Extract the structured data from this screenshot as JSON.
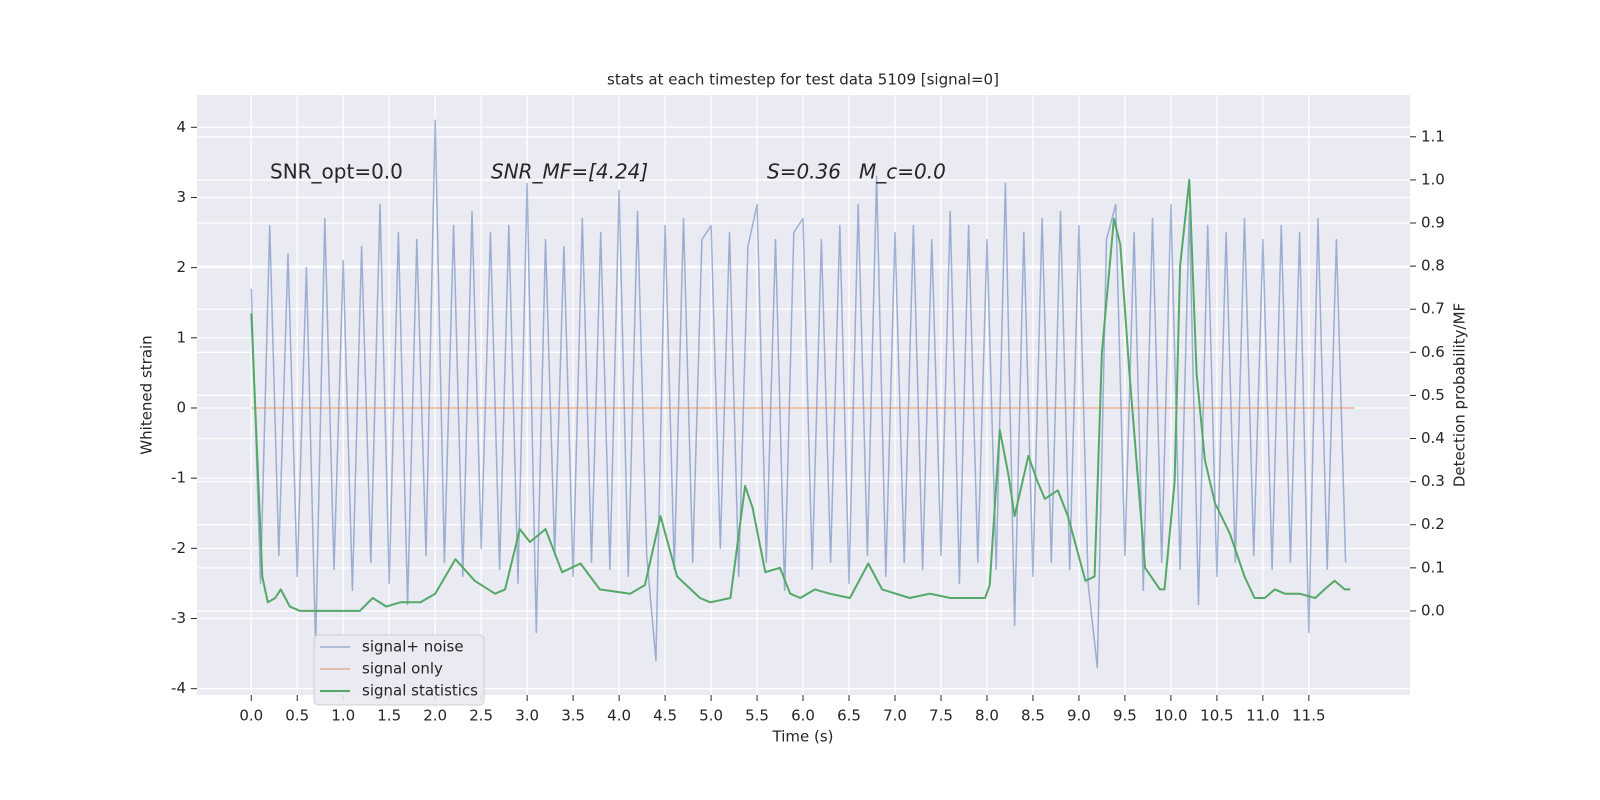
{
  "chart_data": {
    "type": "line",
    "title": "stats at each timestep for test data 5109 [signal=0]",
    "xlabel": "Time (s)",
    "ylabel": "Whitened strain",
    "y2label": "Detection probability/MF",
    "annotations": [
      "SNR_opt=0.0",
      "SNR_MF=[4.24]",
      "S=0.36",
      "M_c=0.0"
    ],
    "xlim": [
      -0.59,
      12.6
    ],
    "ylim": [
      -4.09,
      4.46
    ],
    "y2lim": [
      -0.195,
      1.197
    ],
    "xticks": [
      {
        "value": 0,
        "label": "0.0"
      },
      0.5,
      {
        "value": 1,
        "label": "1.0"
      },
      1.5,
      {
        "value": 2,
        "label": "2.0"
      },
      2.5,
      {
        "value": 3,
        "label": "3.0"
      },
      3.5,
      {
        "value": 4,
        "label": "4.0"
      },
      4.5,
      {
        "value": 5,
        "label": "5.0"
      },
      5.5,
      {
        "value": 6,
        "label": "6.0"
      },
      6.5,
      {
        "value": 7,
        "label": "7.0"
      },
      7.5,
      {
        "value": 8,
        "label": "8.0"
      },
      8.5,
      {
        "value": 9,
        "label": "9.0"
      },
      9.5,
      {
        "value": 10,
        "label": "10.0"
      },
      10.5,
      {
        "value": 11,
        "label": "11.0"
      },
      11.5
    ],
    "yticks": [
      -4,
      -3,
      -2,
      -1,
      0,
      1,
      2,
      3,
      4
    ],
    "y2ticks": [
      {
        "value": 0,
        "label": "0.0"
      },
      0.1,
      0.2,
      0.3,
      0.4,
      0.5,
      0.6,
      0.7,
      0.8,
      0.9,
      {
        "value": 1,
        "label": "1.0"
      },
      1.1
    ],
    "grid": true,
    "legend": "lower left",
    "series": [
      {
        "name": "signal+ noise",
        "color": "#4c72b0",
        "x": [
          0.0,
          0.1,
          0.2,
          0.3,
          0.4,
          0.5,
          0.6,
          0.7,
          0.8,
          0.9,
          1.0,
          1.1,
          1.2,
          1.3,
          1.4,
          1.5,
          1.6,
          1.7,
          1.8,
          1.9,
          2.0,
          2.1,
          2.2,
          2.3,
          2.4,
          2.5,
          2.6,
          2.7,
          2.8,
          2.9,
          3.0,
          3.1,
          3.2,
          3.3,
          3.4,
          3.5,
          3.6,
          3.7,
          3.8,
          3.9,
          4.0,
          4.1,
          4.2,
          4.3,
          4.4,
          4.5,
          4.6,
          4.7,
          4.8,
          4.9,
          5.0,
          5.1,
          5.2,
          5.3,
          5.4,
          5.5,
          5.6,
          5.7,
          5.8,
          5.9,
          6.0,
          6.1,
          6.2,
          6.3,
          6.4,
          6.5,
          6.6,
          6.7,
          6.8,
          6.9,
          7.0,
          7.1,
          7.2,
          7.3,
          7.4,
          7.5,
          7.6,
          7.7,
          7.8,
          7.9,
          8.0,
          8.1,
          8.2,
          8.3,
          8.4,
          8.5,
          8.6,
          8.7,
          8.8,
          8.9,
          9.0,
          9.1,
          9.2,
          9.3,
          9.4,
          9.5,
          9.6,
          9.7,
          9.8,
          9.9,
          10.0,
          10.1,
          10.2,
          10.3,
          10.4,
          10.5,
          10.6,
          10.7,
          10.8,
          10.9,
          11.0,
          11.1,
          11.2,
          11.3,
          11.4,
          11.5,
          11.6,
          11.7,
          11.8,
          11.9
        ],
        "values": [
          1.7,
          -2.5,
          2.6,
          -2.1,
          2.2,
          -2.4,
          2.0,
          -3.4,
          2.7,
          -2.3,
          2.1,
          -2.6,
          2.3,
          -2.2,
          2.9,
          -2.5,
          2.5,
          -2.8,
          2.4,
          -2.1,
          4.1,
          -2.2,
          2.6,
          -2.4,
          2.8,
          -2.0,
          2.5,
          -2.3,
          2.6,
          -2.5,
          3.2,
          -3.2,
          2.4,
          -2.1,
          2.3,
          -2.4,
          2.7,
          -2.2,
          2.5,
          -2.3,
          3.1,
          -2.4,
          2.8,
          -2.1,
          -3.6,
          2.6,
          -2.3,
          2.7,
          -2.2,
          2.4,
          2.6,
          -2.0,
          2.5,
          -2.4,
          2.3,
          2.9,
          -2.2,
          2.4,
          -2.6,
          2.5,
          2.7,
          -2.3,
          2.4,
          -2.2,
          2.6,
          -2.5,
          2.9,
          -2.1,
          3.3,
          -2.4,
          2.5,
          -2.2,
          2.6,
          -2.3,
          2.4,
          -2.1,
          2.8,
          -2.5,
          2.6,
          -2.2,
          2.4,
          -2.3,
          3.2,
          -3.1,
          2.5,
          -2.4,
          2.7,
          -2.2,
          2.8,
          -2.3,
          2.6,
          -2.5,
          -3.7,
          2.4,
          2.9,
          -2.1,
          2.5,
          -2.6,
          2.7,
          -2.2,
          2.9,
          -2.3,
          2.8,
          -2.8,
          2.6,
          -2.4,
          2.5,
          -2.2,
          2.7,
          -2.1,
          2.4,
          -2.3,
          2.6,
          -2.2,
          2.5,
          -3.2,
          2.7,
          -2.3,
          2.4,
          -2.2
        ]
      },
      {
        "name": "signal only",
        "color": "#dd8452",
        "x": [
          0.0,
          12.0
        ],
        "values": [
          0,
          0
        ]
      },
      {
        "name": "signal statistics",
        "color": "#55a868",
        "axis": "y2",
        "x": [
          0.0,
          0.12,
          0.18,
          0.26,
          0.32,
          0.42,
          0.53,
          0.86,
          1.18,
          1.32,
          1.47,
          1.62,
          1.84,
          2.0,
          2.22,
          2.43,
          2.65,
          2.76,
          2.92,
          3.03,
          3.2,
          3.38,
          3.58,
          3.79,
          4.12,
          4.28,
          4.45,
          4.63,
          4.88,
          4.99,
          5.21,
          5.37,
          5.45,
          5.59,
          5.75,
          5.86,
          5.97,
          6.13,
          6.29,
          6.51,
          6.71,
          6.86,
          7.16,
          7.38,
          7.6,
          7.82,
          7.98,
          8.03,
          8.14,
          8.23,
          8.3,
          8.45,
          8.55,
          8.63,
          8.77,
          8.88,
          9.07,
          9.17,
          9.25,
          9.38,
          9.45,
          9.55,
          9.72,
          9.88,
          9.93,
          10.04,
          10.1,
          10.2,
          10.28,
          10.37,
          10.48,
          10.64,
          10.8,
          10.91,
          11.02,
          11.13,
          11.24,
          11.4,
          11.57,
          11.67,
          11.78,
          11.89,
          11.95
        ],
        "values": [
          0.69,
          0.08,
          0.02,
          0.03,
          0.05,
          0.01,
          0.0,
          0.0,
          0.0,
          0.03,
          0.01,
          0.02,
          0.02,
          0.04,
          0.12,
          0.07,
          0.04,
          0.05,
          0.19,
          0.16,
          0.19,
          0.09,
          0.11,
          0.05,
          0.04,
          0.06,
          0.22,
          0.08,
          0.03,
          0.02,
          0.03,
          0.29,
          0.24,
          0.09,
          0.1,
          0.04,
          0.03,
          0.05,
          0.04,
          0.03,
          0.11,
          0.05,
          0.03,
          0.04,
          0.03,
          0.03,
          0.03,
          0.06,
          0.42,
          0.32,
          0.22,
          0.36,
          0.3,
          0.26,
          0.28,
          0.22,
          0.07,
          0.08,
          0.6,
          0.91,
          0.85,
          0.55,
          0.1,
          0.05,
          0.05,
          0.3,
          0.8,
          1.0,
          0.55,
          0.35,
          0.25,
          0.18,
          0.08,
          0.03,
          0.03,
          0.05,
          0.04,
          0.04,
          0.03,
          0.05,
          0.07,
          0.05,
          0.05
        ]
      }
    ]
  }
}
